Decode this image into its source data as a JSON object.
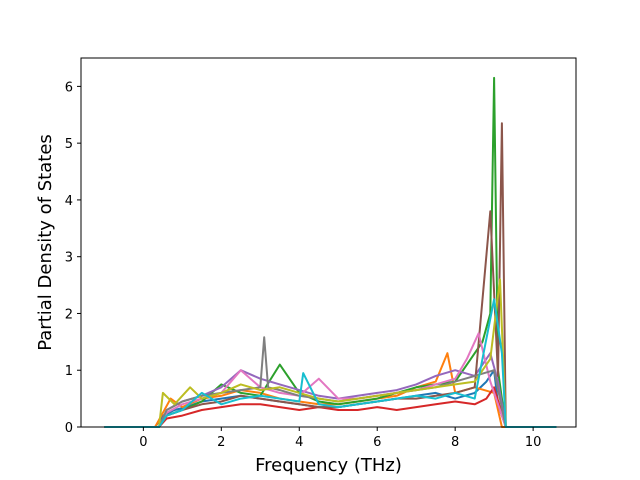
{
  "chart_data": {
    "type": "line",
    "title": "",
    "xlabel": "Frequency (THz)",
    "ylabel": "Partial Density of States",
    "xlim": [
      -1.6,
      11.1
    ],
    "ylim": [
      0,
      6.5
    ],
    "xticks": [
      0,
      2,
      4,
      6,
      8,
      10
    ],
    "yticks": [
      0,
      1,
      2,
      3,
      4,
      5,
      6
    ],
    "xtick_labels": [
      "0",
      "2",
      "4",
      "6",
      "8",
      "10"
    ],
    "ytick_labels": [
      "0",
      "1",
      "2",
      "3",
      "4",
      "5",
      "6"
    ],
    "grid": false,
    "legend": "none",
    "series_note": "many overlapping series (colors cycle through default palette)",
    "colors": [
      "#1f77b4",
      "#ff7f0e",
      "#2ca02c",
      "#d62728",
      "#9467bd",
      "#8c564b",
      "#e377c2",
      "#7f7f7f",
      "#bcbd22",
      "#17becf"
    ],
    "series": [
      {
        "x": [
          -1.0,
          0.3,
          0.5,
          0.8,
          1.1,
          1.5,
          2.0,
          2.5,
          3.0,
          3.5,
          4.0,
          4.5,
          5.0,
          5.5,
          6.0,
          6.5,
          7.0,
          7.5,
          8.0,
          8.5,
          8.8,
          9.0,
          9.1,
          9.3,
          10.6
        ],
        "y": [
          0,
          0,
          0.2,
          0.3,
          0.35,
          0.45,
          0.5,
          0.55,
          0.5,
          0.45,
          0.4,
          0.35,
          0.35,
          0.4,
          0.45,
          0.5,
          0.55,
          0.6,
          0.5,
          0.6,
          0.8,
          1.0,
          0.4,
          0,
          0
        ]
      },
      {
        "x": [
          -1.0,
          0.3,
          0.5,
          0.7,
          1.0,
          1.5,
          2.0,
          2.5,
          3.0,
          3.5,
          4.0,
          4.5,
          5.0,
          5.5,
          6.0,
          6.5,
          7.0,
          7.5,
          7.8,
          8.0,
          8.5,
          9.0,
          9.2,
          10.6
        ],
        "y": [
          0,
          0,
          0.25,
          0.5,
          0.35,
          0.5,
          0.55,
          0.65,
          0.6,
          0.5,
          0.45,
          0.4,
          0.4,
          0.45,
          0.5,
          0.55,
          0.7,
          0.8,
          1.3,
          0.6,
          0.7,
          0.6,
          0,
          0
        ]
      },
      {
        "x": [
          -1.0,
          0.4,
          0.6,
          1.0,
          1.5,
          2.0,
          2.5,
          3.0,
          3.5,
          4.0,
          4.5,
          5.0,
          5.5,
          6.0,
          6.5,
          7.0,
          7.5,
          8.0,
          8.4,
          8.7,
          8.9,
          9.0,
          9.1,
          9.3,
          10.6
        ],
        "y": [
          0,
          0,
          0.2,
          0.3,
          0.45,
          0.75,
          0.6,
          0.55,
          1.1,
          0.6,
          0.45,
          0.4,
          0.45,
          0.5,
          0.6,
          0.7,
          0.75,
          0.8,
          1.2,
          1.5,
          2.0,
          6.15,
          1.0,
          0,
          0
        ]
      },
      {
        "x": [
          -1.0,
          0.4,
          0.6,
          1.0,
          1.5,
          2.0,
          2.5,
          3.0,
          3.5,
          4.0,
          4.5,
          5.0,
          5.5,
          6.0,
          6.5,
          7.0,
          7.5,
          8.0,
          8.5,
          8.8,
          9.0,
          9.3,
          10.6
        ],
        "y": [
          0,
          0,
          0.15,
          0.2,
          0.3,
          0.35,
          0.4,
          0.4,
          0.35,
          0.3,
          0.35,
          0.3,
          0.3,
          0.35,
          0.3,
          0.35,
          0.4,
          0.45,
          0.4,
          0.5,
          0.7,
          0,
          0
        ]
      },
      {
        "x": [
          -1.0,
          0.4,
          0.6,
          1.0,
          1.5,
          2.0,
          2.5,
          3.0,
          3.5,
          4.0,
          4.5,
          5.0,
          5.5,
          6.0,
          6.5,
          7.0,
          7.5,
          8.0,
          8.5,
          8.9,
          9.1,
          9.3,
          10.6
        ],
        "y": [
          0,
          0,
          0.3,
          0.45,
          0.55,
          0.7,
          1.0,
          0.85,
          0.75,
          0.65,
          0.55,
          0.5,
          0.55,
          0.6,
          0.65,
          0.75,
          0.9,
          1.0,
          0.9,
          1.3,
          0.8,
          0,
          0
        ]
      },
      {
        "x": [
          -1.0,
          0.4,
          0.6,
          1.0,
          1.5,
          2.0,
          2.5,
          3.0,
          3.5,
          4.0,
          4.5,
          5.0,
          5.5,
          6.0,
          6.5,
          7.0,
          7.5,
          8.0,
          8.5,
          8.9,
          9.1,
          9.2,
          9.3,
          10.6
        ],
        "y": [
          0,
          0,
          0.2,
          0.3,
          0.4,
          0.45,
          0.55,
          0.5,
          0.45,
          0.4,
          0.35,
          0.35,
          0.4,
          0.45,
          0.5,
          0.5,
          0.55,
          0.6,
          0.7,
          3.8,
          0.9,
          5.35,
          0,
          0
        ]
      },
      {
        "x": [
          -1.0,
          0.4,
          0.6,
          1.0,
          1.5,
          2.0,
          2.5,
          3.0,
          3.5,
          4.0,
          4.5,
          5.0,
          5.5,
          6.0,
          6.5,
          7.0,
          7.5,
          8.0,
          8.3,
          8.6,
          8.9,
          9.3,
          10.6
        ],
        "y": [
          0,
          0,
          0.25,
          0.4,
          0.5,
          0.6,
          1.0,
          0.7,
          0.6,
          0.55,
          0.85,
          0.5,
          0.5,
          0.55,
          0.6,
          0.65,
          0.75,
          0.85,
          1.2,
          1.65,
          0.8,
          0,
          0
        ]
      },
      {
        "x": [
          -1.0,
          0.4,
          0.6,
          1.0,
          1.5,
          2.0,
          2.5,
          3.0,
          3.1,
          3.2,
          3.5,
          4.0,
          4.5,
          5.0,
          5.5,
          6.0,
          6.5,
          7.0,
          7.5,
          8.0,
          8.5,
          9.0,
          9.3,
          10.6
        ],
        "y": [
          0,
          0,
          0.3,
          0.45,
          0.55,
          0.6,
          0.65,
          0.7,
          1.58,
          0.7,
          0.65,
          0.55,
          0.5,
          0.45,
          0.5,
          0.55,
          0.6,
          0.65,
          0.7,
          0.8,
          0.9,
          1.0,
          0,
          0
        ]
      },
      {
        "x": [
          -1.0,
          0.4,
          0.5,
          0.8,
          1.2,
          1.5,
          2.0,
          2.5,
          3.0,
          3.5,
          4.0,
          4.5,
          5.0,
          5.5,
          6.0,
          6.5,
          7.0,
          7.5,
          8.0,
          8.5,
          8.9,
          9.15,
          9.3,
          10.6
        ],
        "y": [
          0,
          0,
          0.6,
          0.4,
          0.7,
          0.5,
          0.6,
          0.75,
          0.65,
          0.7,
          0.6,
          0.5,
          0.45,
          0.5,
          0.55,
          0.6,
          0.65,
          0.7,
          0.75,
          0.8,
          1.2,
          2.6,
          0,
          0
        ]
      },
      {
        "x": [
          -1.0,
          0.4,
          0.6,
          1.0,
          1.5,
          2.0,
          2.5,
          3.0,
          3.5,
          4.0,
          4.1,
          4.5,
          5.0,
          5.5,
          6.0,
          6.5,
          7.0,
          7.5,
          8.0,
          8.5,
          9.0,
          9.2,
          9.3,
          10.6
        ],
        "y": [
          0,
          0,
          0.2,
          0.3,
          0.6,
          0.4,
          0.5,
          0.55,
          0.5,
          0.45,
          0.95,
          0.4,
          0.35,
          0.4,
          0.45,
          0.5,
          0.55,
          0.5,
          0.6,
          0.5,
          2.25,
          1.3,
          0,
          0
        ]
      }
    ]
  }
}
